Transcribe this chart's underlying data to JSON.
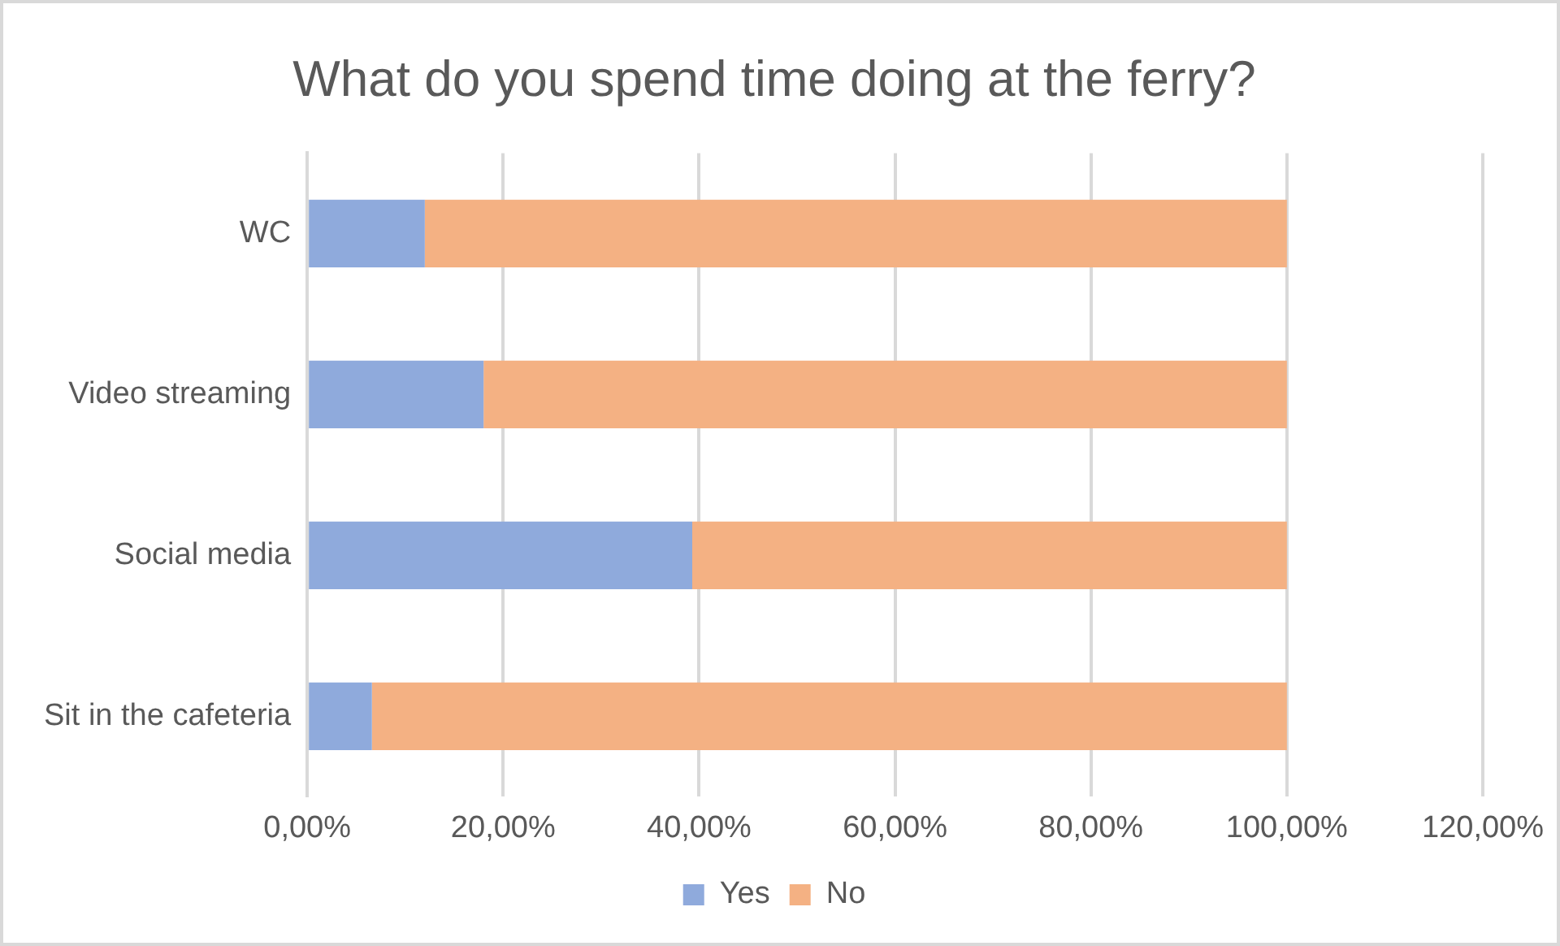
{
  "chart_data": {
    "type": "bar",
    "orientation": "horizontal",
    "stacked": true,
    "title": "What do you spend time doing at the ferry?",
    "categories": [
      "WC",
      "Video streaming",
      "Social media",
      "Sit in the cafeteria"
    ],
    "series": [
      {
        "name": "Yes",
        "color": "#8faadc",
        "values": [
          12.0,
          18.0,
          39.3,
          6.6
        ]
      },
      {
        "name": "No",
        "color": "#f4b183",
        "values": [
          88.0,
          82.0,
          60.7,
          93.4
        ]
      }
    ],
    "xlim": [
      0,
      120
    ],
    "xticks": [
      {
        "value": 0,
        "label": "0,00%"
      },
      {
        "value": 20,
        "label": "20,00%"
      },
      {
        "value": 40,
        "label": "40,00%"
      },
      {
        "value": 60,
        "label": "60,00%"
      },
      {
        "value": 80,
        "label": "80,00%"
      },
      {
        "value": 100,
        "label": "100,00%"
      },
      {
        "value": 120,
        "label": "120,00%"
      }
    ],
    "grid": "x",
    "legend": "bottom"
  }
}
